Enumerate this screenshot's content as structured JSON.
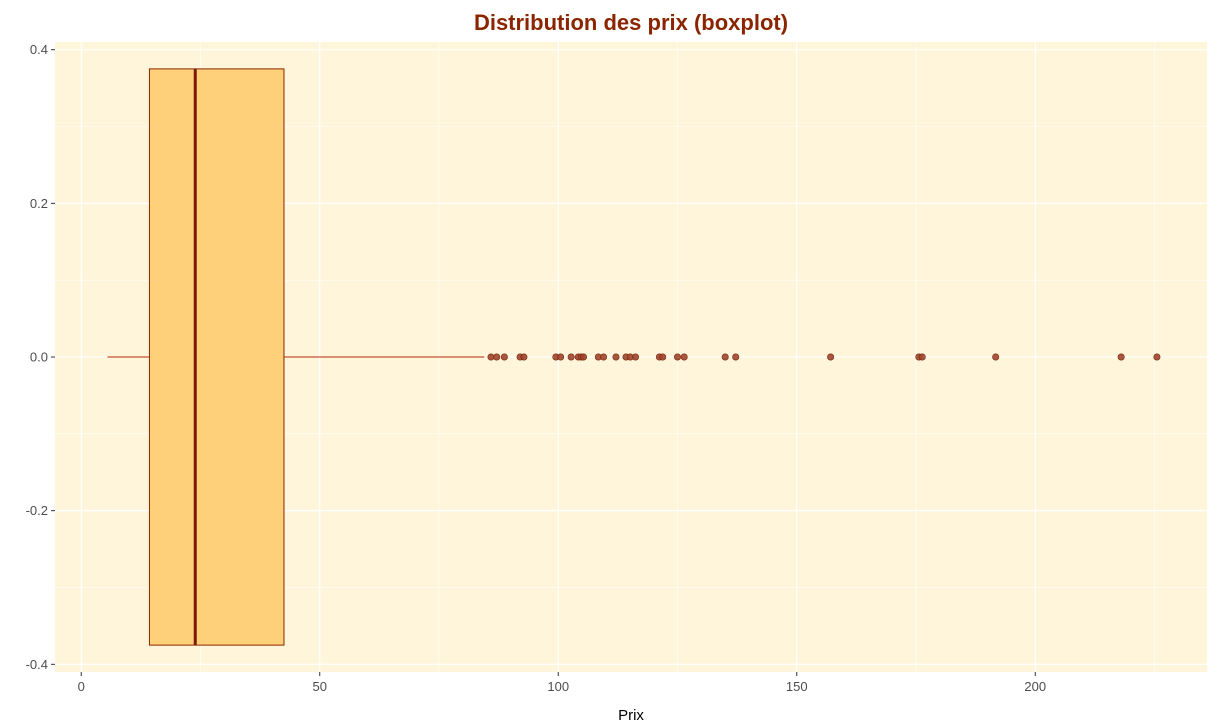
{
  "chart_data": {
    "type": "boxplot",
    "title": "Distribution des prix (boxplot)",
    "xlabel": "Prix",
    "ylabel": "",
    "xlim": [
      -5.5,
      236
    ],
    "ylim": [
      -0.41,
      0.41
    ],
    "x_ticks": [
      0,
      50,
      100,
      150,
      200
    ],
    "y_ticks": [
      -0.4,
      -0.2,
      0.0,
      0.2,
      0.4
    ],
    "x_tick_labels": [
      "0",
      "50",
      "100",
      "150",
      "200"
    ],
    "y_tick_labels": [
      "-0.4",
      "-0.2",
      "0.0",
      "0.2",
      "0.4"
    ],
    "grid": true,
    "box": {
      "whisker_low": 5.5,
      "q1": 14.3,
      "median": 23.9,
      "q3": 42.5,
      "whisker_high": 84.5,
      "y_center": 0.0,
      "y_half_width": 0.375
    },
    "outliers": [
      85.9,
      87.1,
      88.7,
      92.0,
      92.8,
      99.5,
      100.5,
      102.7,
      104.2,
      104.8,
      105.3,
      108.4,
      109.5,
      112.1,
      114.2,
      115.1,
      116.2,
      121.2,
      121.9,
      125.0,
      126.4,
      135.0,
      137.2,
      157.1,
      175.6,
      176.3,
      191.7,
      218.0,
      225.5
    ]
  },
  "colors": {
    "panel_background": "#fff5da",
    "grid": "#ffffff",
    "box_fill": "#ffd07a",
    "box_border": "#8b2500",
    "median": "#7a1a05",
    "whisker": "#c4502f",
    "outlier": "#a0452a",
    "title": "#8b2500",
    "tick_text": "#4d4d4d"
  }
}
